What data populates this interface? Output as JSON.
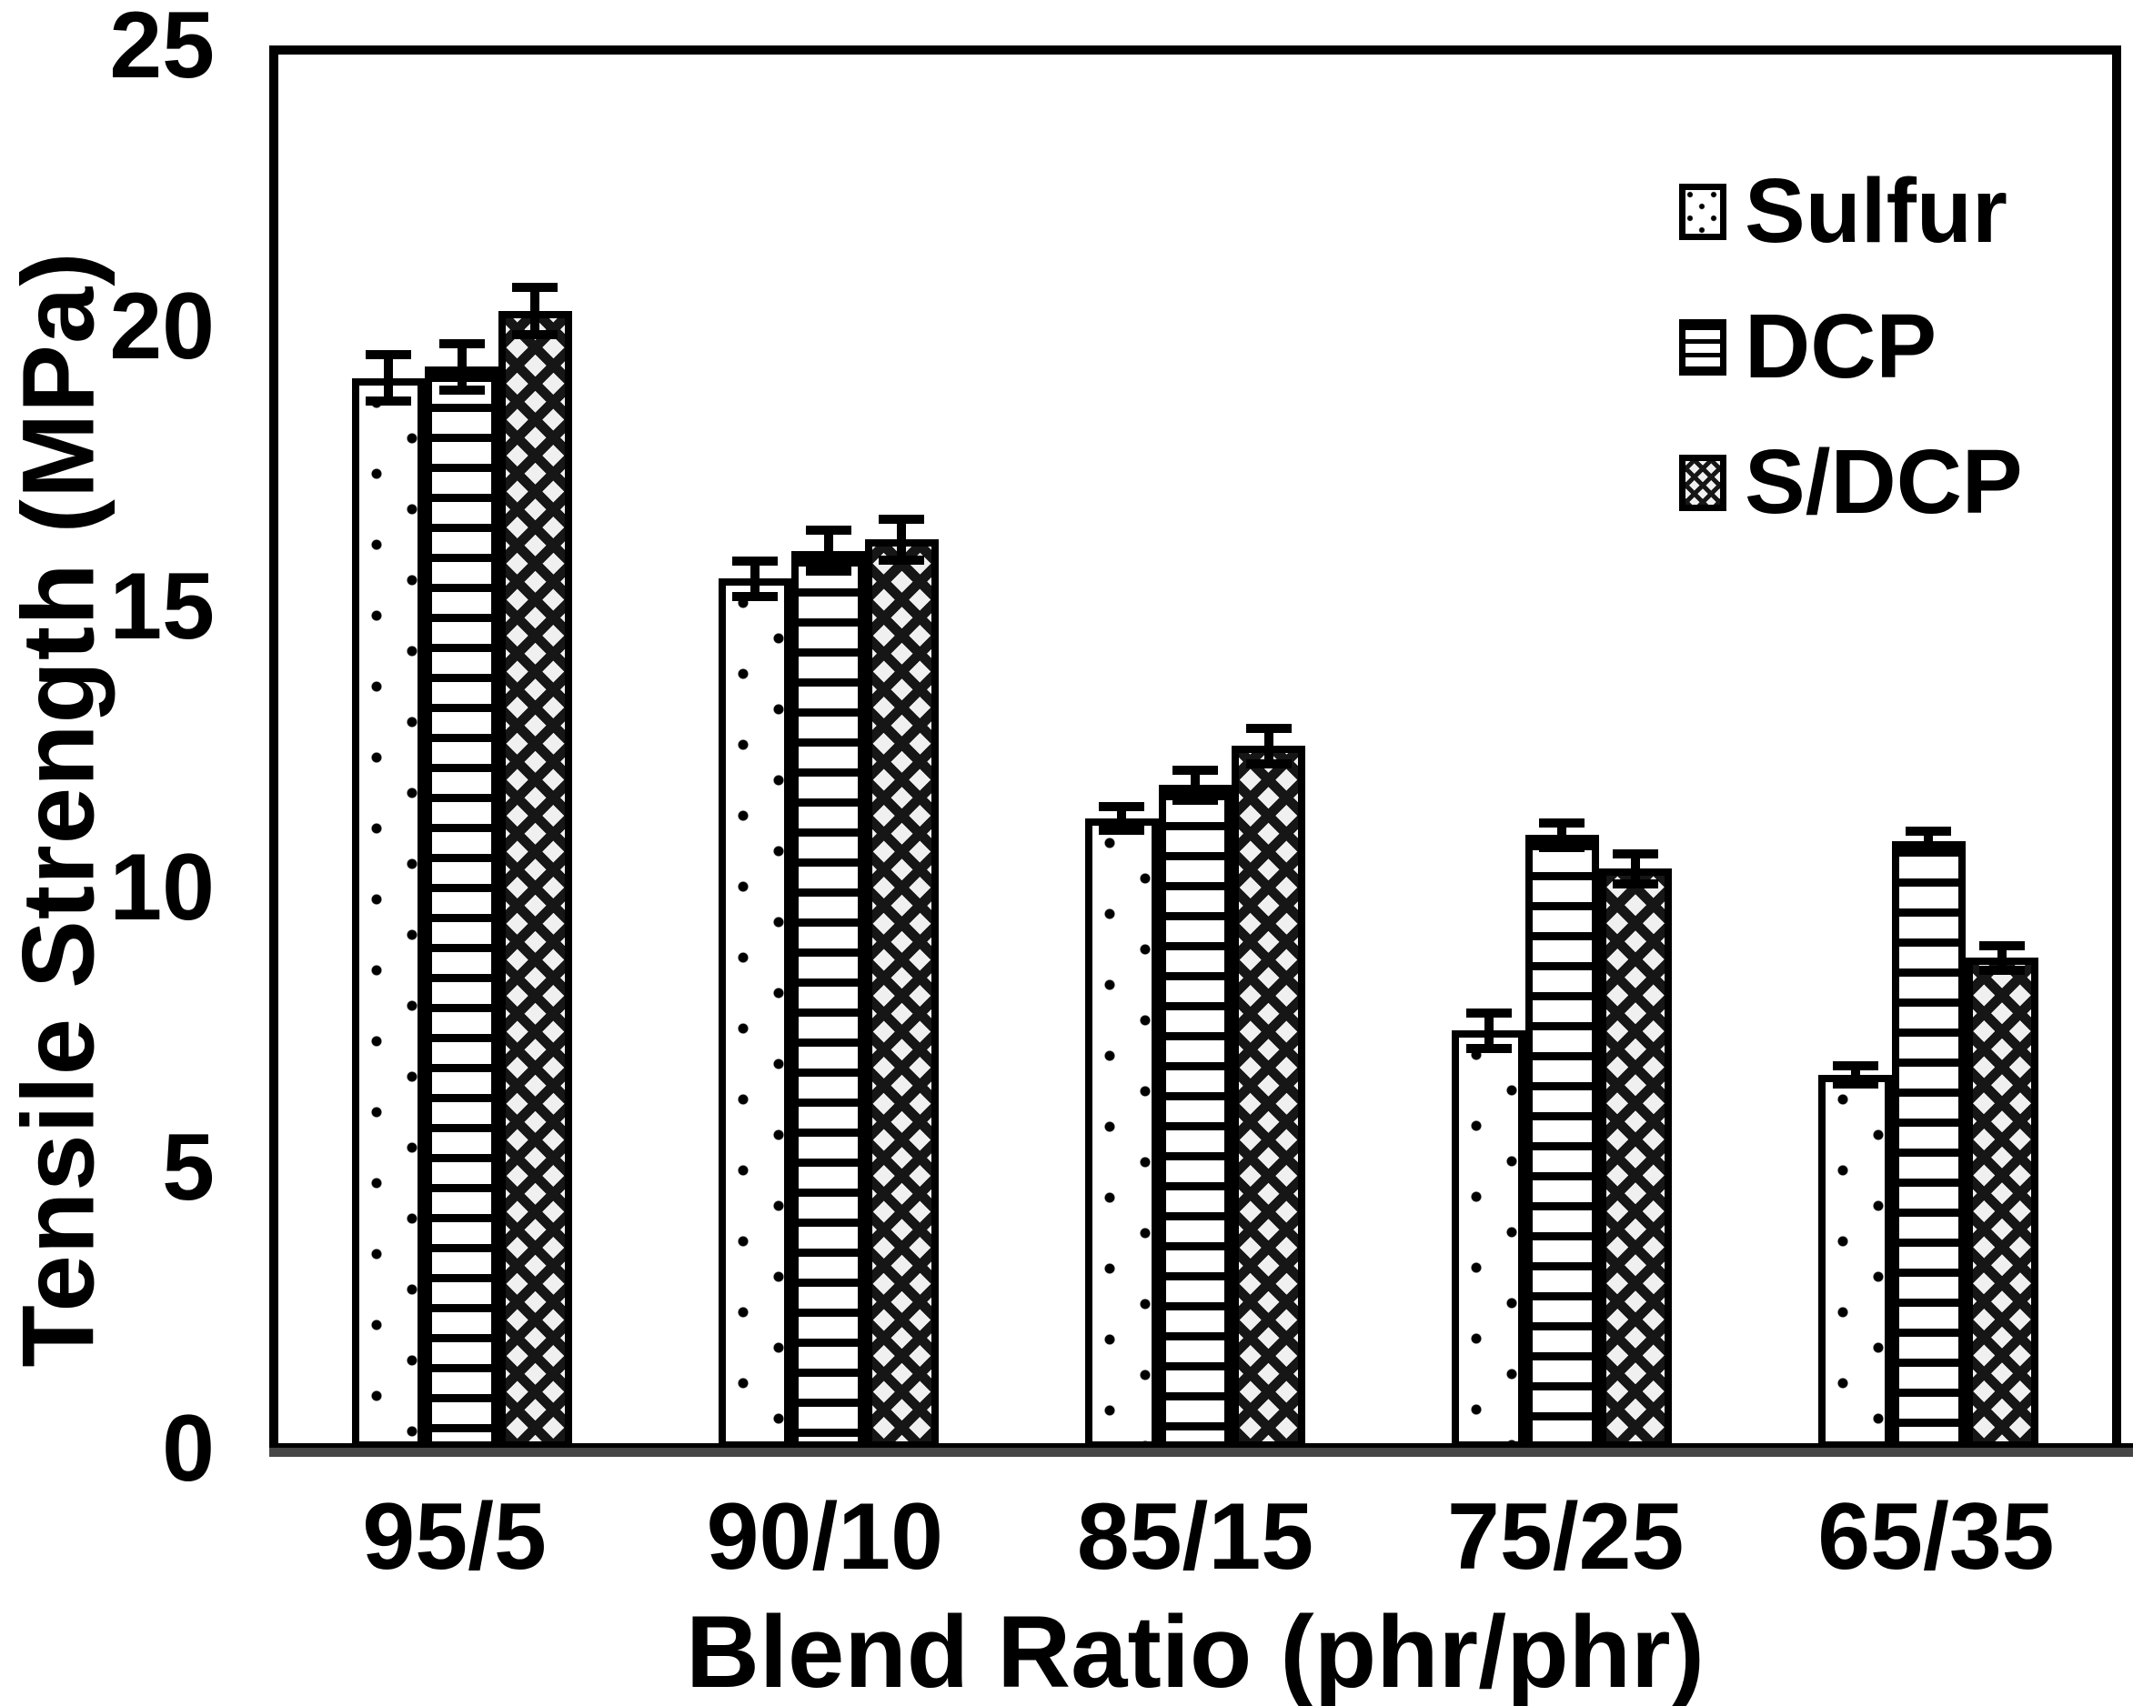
{
  "chart_data": {
    "type": "bar",
    "title": "",
    "xlabel": "Blend Ratio (phr/phr)",
    "ylabel": "Tensile Strength (MPa)",
    "categories": [
      "95/5",
      "90/10",
      "85/15",
      "75/25",
      "65/35"
    ],
    "series": [
      {
        "name": "Sulfur",
        "pattern": "dots",
        "values": [
          19.2,
          15.6,
          11.3,
          7.5,
          6.7
        ],
        "errors": [
          0.5,
          0.4,
          0.3,
          0.4,
          0.25
        ]
      },
      {
        "name": "DCP",
        "pattern": "hlines",
        "values": [
          19.4,
          16.1,
          11.9,
          11.0,
          10.9
        ],
        "errors": [
          0.5,
          0.45,
          0.35,
          0.3,
          0.25
        ]
      },
      {
        "name": "S/DCP",
        "pattern": "crosshatch",
        "values": [
          20.4,
          16.3,
          12.6,
          10.4,
          8.8
        ],
        "errors": [
          0.5,
          0.45,
          0.4,
          0.35,
          0.3
        ]
      }
    ],
    "ylim": [
      0,
      25
    ],
    "yticks": [
      0,
      5,
      10,
      15,
      20,
      25
    ],
    "grid": false,
    "error_bars": true,
    "legend_position": "upper-right-inside",
    "colors": {
      "foreground": "#000000",
      "background": "#ffffff",
      "baseline": "#464646"
    }
  }
}
